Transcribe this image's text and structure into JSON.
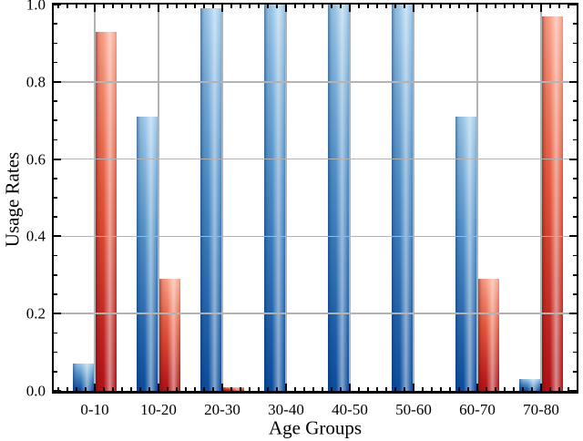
{
  "chart_data": {
    "type": "bar",
    "title": "",
    "xlabel": "Age Groups",
    "ylabel": "Usage Rates",
    "categories": [
      "0-10",
      "10-20",
      "20-30",
      "30-40",
      "40-50",
      "50-60",
      "60-70",
      "70-80"
    ],
    "series": [
      {
        "name": "blue-gradient-series",
        "values": [
          0.07,
          0.71,
          0.99,
          1.0,
          1.0,
          1.0,
          0.71,
          0.03
        ],
        "color_top": "#9ec9e8",
        "color_bottom": "#0b4c9c"
      },
      {
        "name": "red-gradient-series",
        "values": [
          0.93,
          0.29,
          0.01,
          0.0,
          0.0,
          0.0,
          0.29,
          0.97
        ],
        "color_top": "#f9a188",
        "color_bottom": "#b01116"
      }
    ],
    "ylim": [
      0.0,
      1.0
    ],
    "yticks": [
      0.0,
      0.2,
      0.4,
      0.6,
      0.8,
      1.0
    ],
    "ytick_labels": [
      "0.0",
      "0.2",
      "0.4",
      "0.6",
      "0.8",
      "1.0"
    ],
    "y_minor_tick_step": 0.05,
    "grid": {
      "horizontal": true,
      "vertical": true,
      "color": "#b3b3b3"
    },
    "legend": "none",
    "spine_color": "#000000"
  }
}
